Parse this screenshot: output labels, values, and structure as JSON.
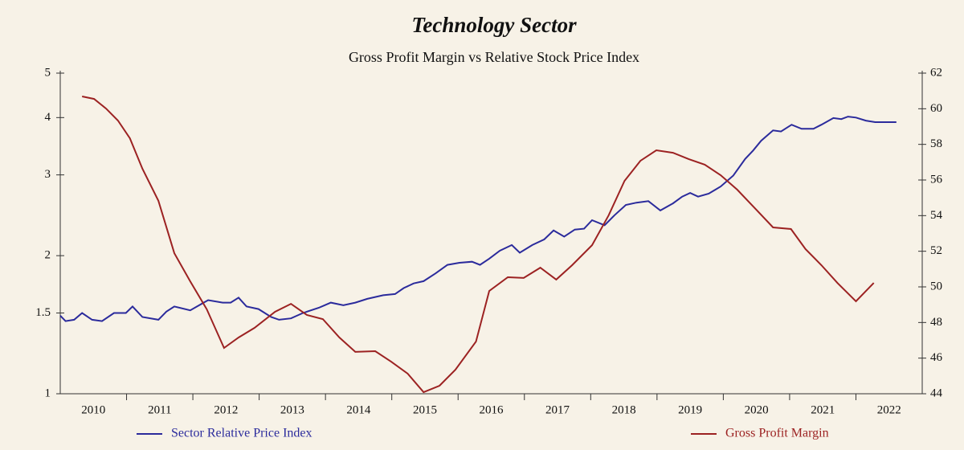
{
  "chart_data": {
    "type": "line",
    "title": "Technology Sector",
    "subtitle": "Gross Profit Margin vs Relative Stock Price Index",
    "xlim": [
      2010,
      2023
    ],
    "xticks": [
      {
        "value": 2010.5,
        "label": "2010"
      },
      {
        "value": 2011.5,
        "label": "2011"
      },
      {
        "value": 2012.5,
        "label": "2012"
      },
      {
        "value": 2013.5,
        "label": "2013"
      },
      {
        "value": 2014.5,
        "label": "2014"
      },
      {
        "value": 2015.5,
        "label": "2015"
      },
      {
        "value": 2016.5,
        "label": "2016"
      },
      {
        "value": 2017.5,
        "label": "2017"
      },
      {
        "value": 2018.5,
        "label": "2018"
      },
      {
        "value": 2019.5,
        "label": "2019"
      },
      {
        "value": 2020.5,
        "label": "2020"
      },
      {
        "value": 2021.5,
        "label": "2021"
      },
      {
        "value": 2022.5,
        "label": "2022"
      }
    ],
    "ylim": [
      1,
      5
    ],
    "ylog": true,
    "yticks": [
      1,
      1.5,
      2,
      3,
      4,
      5
    ],
    "y2lim": [
      44,
      62
    ],
    "y2ticks": [
      44,
      46,
      48,
      50,
      52,
      54,
      56,
      58,
      60,
      62
    ],
    "series": [
      {
        "name": "Sector Relative Price Index",
        "color": "#2b2b9c",
        "x": [
          2010.0,
          2010.08,
          2010.21,
          2010.33,
          2010.48,
          2010.63,
          2010.81,
          2010.99,
          2011.09,
          2011.24,
          2011.48,
          2011.6,
          2011.72,
          2011.96,
          2012.23,
          2012.45,
          2012.57,
          2012.69,
          2012.81,
          2012.99,
          2013.18,
          2013.3,
          2013.48,
          2013.66,
          2013.9,
          2014.08,
          2014.27,
          2014.45,
          2014.63,
          2014.87,
          2015.05,
          2015.18,
          2015.33,
          2015.48,
          2015.66,
          2015.84,
          2016.02,
          2016.21,
          2016.33,
          2016.47,
          2016.63,
          2016.81,
          2016.93,
          2017.12,
          2017.3,
          2017.44,
          2017.6,
          2017.76,
          2017.9,
          2018.02,
          2018.21,
          2018.36,
          2018.53,
          2018.69,
          2018.87,
          2019.05,
          2019.24,
          2019.38,
          2019.5,
          2019.62,
          2019.78,
          2019.96,
          2020.15,
          2020.33,
          2020.45,
          2020.57,
          2020.75,
          2020.87,
          2021.03,
          2021.18,
          2021.36,
          2021.48,
          2021.66,
          2021.78,
          2021.88,
          2022.0,
          2022.15,
          2022.29,
          2022.61
        ],
        "values": [
          1.48,
          1.44,
          1.45,
          1.5,
          1.45,
          1.44,
          1.5,
          1.5,
          1.55,
          1.47,
          1.45,
          1.51,
          1.55,
          1.52,
          1.6,
          1.58,
          1.58,
          1.62,
          1.55,
          1.53,
          1.47,
          1.45,
          1.46,
          1.5,
          1.54,
          1.58,
          1.56,
          1.58,
          1.61,
          1.64,
          1.65,
          1.7,
          1.74,
          1.76,
          1.83,
          1.91,
          1.93,
          1.94,
          1.91,
          1.97,
          2.05,
          2.11,
          2.03,
          2.11,
          2.17,
          2.27,
          2.2,
          2.28,
          2.29,
          2.39,
          2.33,
          2.45,
          2.58,
          2.61,
          2.63,
          2.51,
          2.6,
          2.69,
          2.74,
          2.69,
          2.73,
          2.83,
          2.99,
          3.25,
          3.39,
          3.56,
          3.75,
          3.73,
          3.86,
          3.78,
          3.78,
          3.86,
          3.99,
          3.97,
          4.02,
          4.0,
          3.94,
          3.91,
          3.91
        ]
      },
      {
        "name": "Gross Profit Margin",
        "color": "#9c2222",
        "axis": "y2",
        "x": [
          2010.33,
          2010.51,
          2010.69,
          2010.87,
          2011.05,
          2011.24,
          2011.48,
          2011.72,
          2011.96,
          2012.21,
          2012.47,
          2012.69,
          2012.93,
          2013.24,
          2013.48,
          2013.72,
          2013.96,
          2014.21,
          2014.45,
          2014.75,
          2014.99,
          2015.24,
          2015.48,
          2015.72,
          2015.96,
          2016.27,
          2016.47,
          2016.75,
          2016.99,
          2017.24,
          2017.48,
          2017.72,
          2018.02,
          2018.27,
          2018.51,
          2018.75,
          2018.99,
          2019.24,
          2019.48,
          2019.72,
          2019.96,
          2020.21,
          2020.51,
          2020.75,
          2021.02,
          2021.24,
          2021.48,
          2021.72,
          2022.0,
          2022.27
        ],
        "values": [
          60.69,
          60.55,
          60.01,
          59.34,
          58.34,
          56.63,
          54.83,
          51.89,
          50.31,
          48.74,
          46.57,
          47.16,
          47.7,
          48.6,
          49.05,
          48.42,
          48.19,
          47.16,
          46.35,
          46.39,
          45.8,
          45.13,
          44.09,
          44.45,
          45.35,
          46.93,
          49.77,
          50.54,
          50.5,
          51.08,
          50.41,
          51.22,
          52.34,
          54.01,
          55.95,
          57.08,
          57.67,
          57.53,
          57.17,
          56.86,
          56.27,
          55.46,
          54.28,
          53.34,
          53.25,
          52.12,
          51.22,
          50.22,
          49.19,
          50.22
        ]
      }
    ]
  }
}
